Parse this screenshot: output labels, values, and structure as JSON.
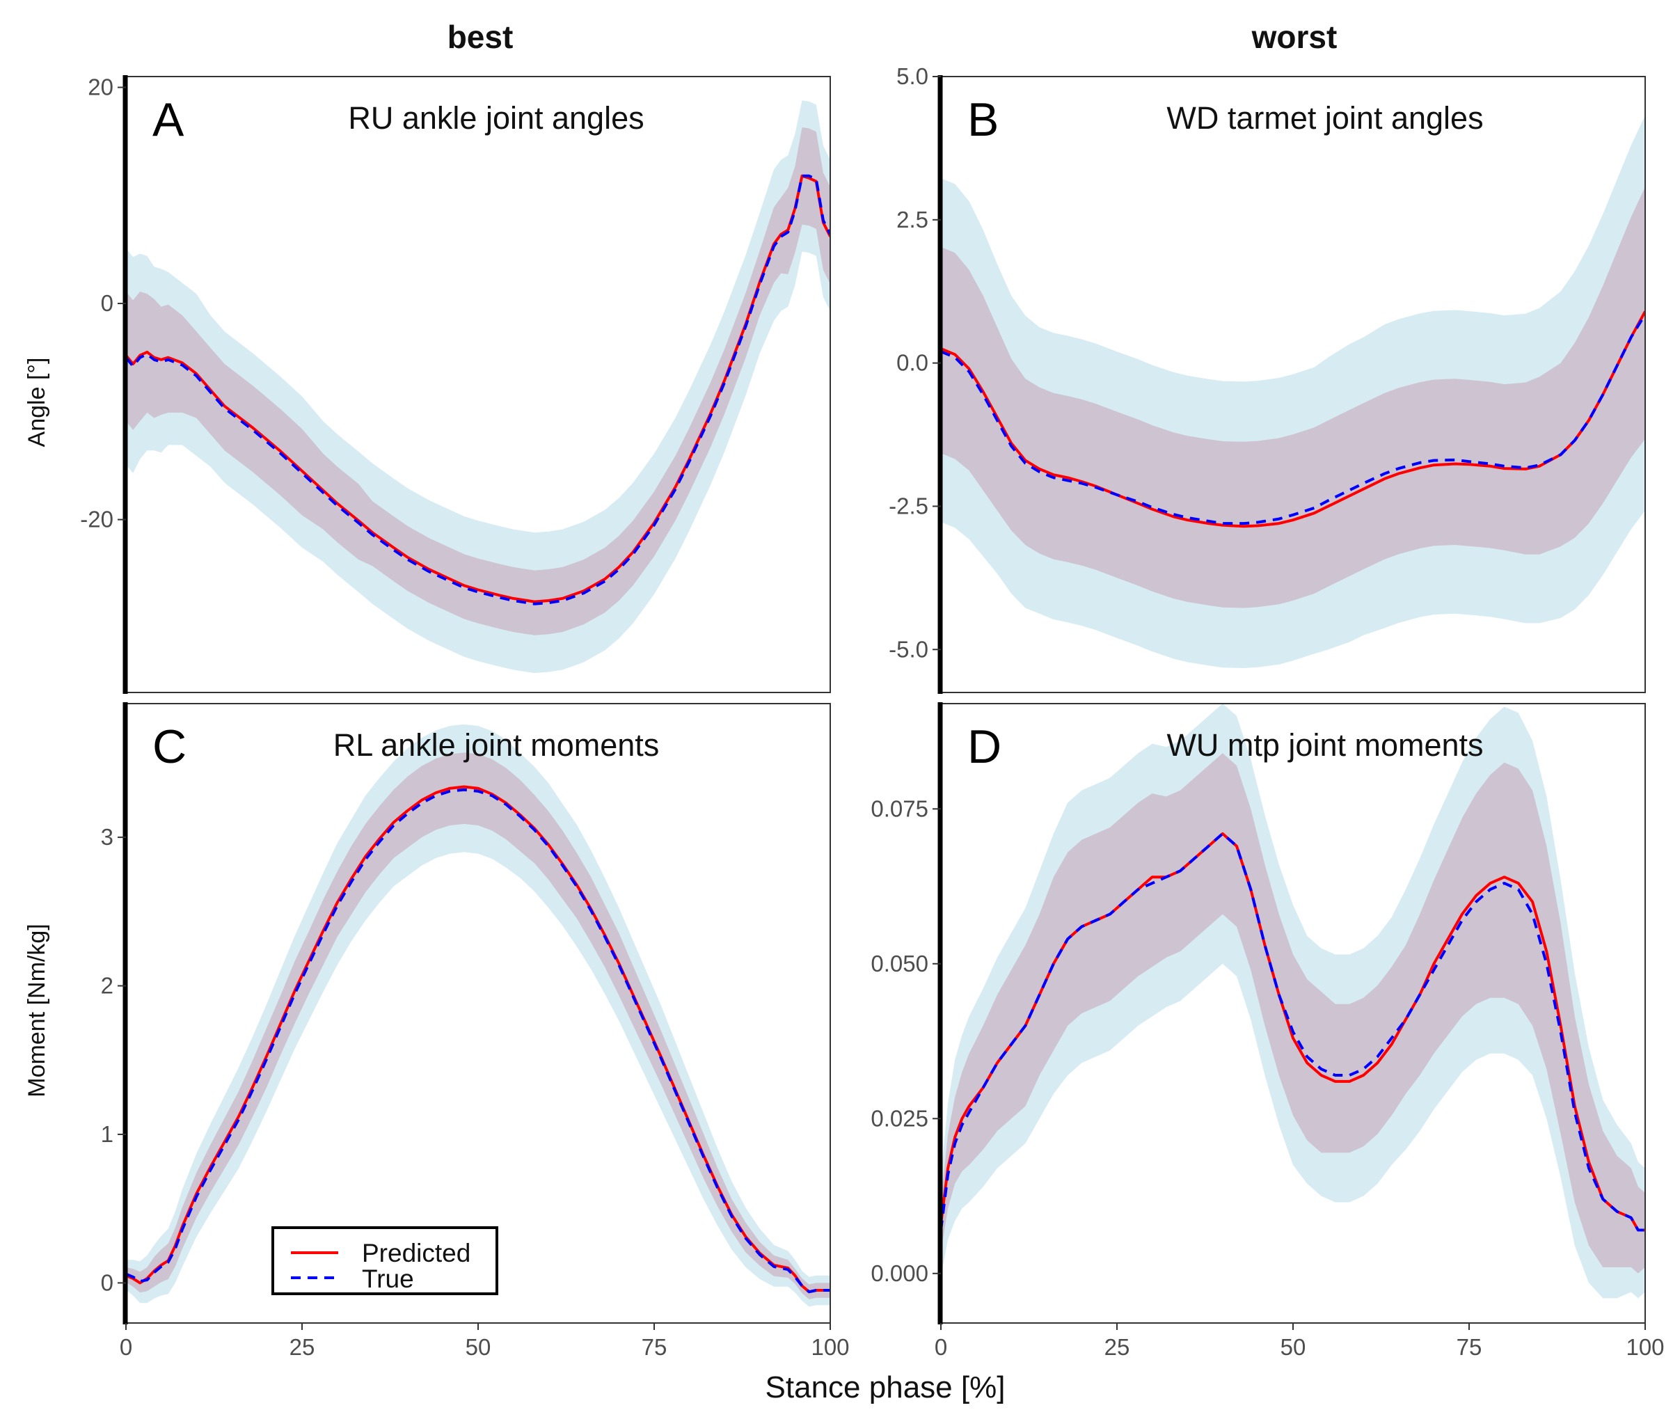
{
  "figure": {
    "columns": [
      "best",
      "worst"
    ],
    "xlabel": "Stance phase [%]",
    "ylabels": {
      "angle": "Angle [°]",
      "moment": "Moment [Nm/kg]"
    },
    "legend": {
      "predicted": "Predicted",
      "true": "True"
    }
  },
  "colors": {
    "predicted": "#ff0000",
    "true": "#0000ff",
    "outer_band": "#add8e6",
    "inner_band": "#c8a2b4"
  },
  "chart_data": [
    {
      "type": "line",
      "letter": "A",
      "title": "RU ankle joint angles",
      "xlim": [
        0,
        100
      ],
      "ylim": [
        -36,
        21
      ],
      "x_ticks": [
        0,
        25,
        50,
        75,
        100
      ],
      "y_ticks": [
        20,
        0,
        -20
      ],
      "y_tick_labels": [
        "20",
        "0",
        "-20"
      ],
      "x": [
        0,
        1,
        2,
        3,
        4,
        5,
        6,
        8,
        10,
        12,
        14,
        16,
        18,
        20,
        22,
        25,
        28,
        30,
        33,
        35,
        38,
        40,
        43,
        45,
        48,
        50,
        53,
        55,
        58,
        60,
        62,
        65,
        68,
        70,
        72,
        75,
        78,
        80,
        83,
        85,
        88,
        90,
        92,
        93,
        94,
        95,
        96,
        97,
        98,
        99,
        100
      ],
      "series": [
        {
          "name": "Predicted",
          "values": [
            -4.8,
            -5.6,
            -4.8,
            -4.5,
            -5.0,
            -5.2,
            -5.0,
            -5.5,
            -6.5,
            -8.0,
            -9.5,
            -10.5,
            -11.5,
            -12.6,
            -13.7,
            -15.5,
            -17.3,
            -18.5,
            -20.1,
            -21.2,
            -22.6,
            -23.5,
            -24.6,
            -25.2,
            -26.1,
            -26.5,
            -27.0,
            -27.3,
            -27.6,
            -27.5,
            -27.3,
            -26.6,
            -25.5,
            -24.4,
            -23.0,
            -20.3,
            -17.0,
            -14.4,
            -10.2,
            -7.1,
            -1.9,
            2.0,
            5.5,
            6.4,
            6.8,
            8.8,
            11.8,
            11.6,
            11.3,
            7.5,
            6.2
          ]
        },
        {
          "name": "True",
          "values": [
            -5.0,
            -5.8,
            -5.0,
            -4.7,
            -5.2,
            -5.4,
            -5.2,
            -5.7,
            -6.7,
            -8.2,
            -9.7,
            -10.7,
            -11.7,
            -12.8,
            -13.9,
            -15.7,
            -17.5,
            -18.7,
            -20.3,
            -21.4,
            -22.8,
            -23.7,
            -24.8,
            -25.4,
            -26.3,
            -26.7,
            -27.2,
            -27.5,
            -27.8,
            -27.7,
            -27.5,
            -26.8,
            -25.7,
            -24.6,
            -23.2,
            -20.5,
            -17.2,
            -14.6,
            -10.4,
            -7.3,
            -2.1,
            1.8,
            5.3,
            6.2,
            6.6,
            8.6,
            11.8,
            11.8,
            11.5,
            7.7,
            6.4
          ]
        }
      ],
      "band_inner_halfwidth": [
        6,
        6,
        6,
        5.5,
        5.5,
        5,
        5,
        4.5,
        4,
        4,
        4,
        4,
        4,
        4,
        4,
        4,
        3.5,
        3.5,
        3.5,
        3,
        3,
        3,
        3,
        3,
        3,
        3,
        3,
        3,
        3,
        3,
        3,
        3,
        3,
        3,
        3,
        3,
        3,
        3,
        3,
        3,
        3,
        3,
        3.5,
        3.5,
        4,
        4,
        4.5,
        4.5,
        4.5,
        4.5,
        4.5
      ],
      "band_outer_halfwidth": [
        10,
        10,
        9.5,
        9,
        8.5,
        8.5,
        8,
        7.5,
        7.5,
        7,
        7,
        7,
        7,
        7,
        7,
        7,
        6.5,
        6.5,
        6.5,
        6.5,
        6.5,
        6.5,
        6.5,
        6.5,
        6.5,
        6.5,
        6.5,
        6.5,
        6.5,
        6.5,
        6.5,
        6.5,
        6.5,
        6.5,
        6.5,
        6.5,
        6.5,
        6.5,
        6.5,
        6.5,
        6.5,
        6.5,
        7,
        7,
        7,
        7,
        7,
        7,
        7,
        7,
        7
      ]
    },
    {
      "type": "line",
      "letter": "B",
      "title": "WD tarmet joint angles",
      "xlim": [
        0,
        100
      ],
      "ylim": [
        -5.75,
        5.0
      ],
      "x_ticks": [
        0,
        25,
        50,
        75,
        100
      ],
      "y_ticks": [
        5.0,
        2.5,
        0.0,
        -2.5,
        -5.0
      ],
      "y_tick_labels": [
        "5.0",
        "2.5",
        "0.0",
        "-2.5",
        "-5.0"
      ],
      "x": [
        0,
        2,
        4,
        6,
        8,
        10,
        12,
        14,
        16,
        18,
        20,
        22,
        25,
        28,
        30,
        33,
        35,
        38,
        40,
        43,
        45,
        48,
        50,
        53,
        55,
        58,
        60,
        63,
        65,
        68,
        70,
        73,
        75,
        78,
        80,
        83,
        85,
        88,
        90,
        92,
        94,
        96,
        98,
        100
      ],
      "series": [
        {
          "name": "Predicted",
          "values": [
            0.25,
            0.15,
            -0.1,
            -0.5,
            -0.95,
            -1.4,
            -1.7,
            -1.85,
            -1.95,
            -2.0,
            -2.07,
            -2.15,
            -2.3,
            -2.45,
            -2.55,
            -2.68,
            -2.74,
            -2.8,
            -2.83,
            -2.85,
            -2.84,
            -2.8,
            -2.74,
            -2.62,
            -2.5,
            -2.32,
            -2.2,
            -2.02,
            -1.93,
            -1.83,
            -1.78,
            -1.76,
            -1.77,
            -1.8,
            -1.84,
            -1.85,
            -1.8,
            -1.6,
            -1.35,
            -1.0,
            -0.55,
            -0.05,
            0.45,
            0.9
          ]
        },
        {
          "name": "True",
          "values": [
            0.2,
            0.1,
            -0.15,
            -0.55,
            -1.0,
            -1.45,
            -1.75,
            -1.9,
            -2.0,
            -2.05,
            -2.1,
            -2.17,
            -2.3,
            -2.42,
            -2.52,
            -2.64,
            -2.7,
            -2.76,
            -2.8,
            -2.8,
            -2.78,
            -2.72,
            -2.65,
            -2.53,
            -2.4,
            -2.22,
            -2.1,
            -1.93,
            -1.84,
            -1.74,
            -1.7,
            -1.69,
            -1.72,
            -1.76,
            -1.8,
            -1.83,
            -1.78,
            -1.6,
            -1.35,
            -1.0,
            -0.55,
            -0.05,
            0.45,
            0.85
          ]
        }
      ],
      "band_inner_halfwidth": [
        1.8,
        1.8,
        1.75,
        1.7,
        1.6,
        1.5,
        1.45,
        1.45,
        1.45,
        1.45,
        1.45,
        1.45,
        1.45,
        1.45,
        1.45,
        1.45,
        1.45,
        1.45,
        1.45,
        1.45,
        1.45,
        1.45,
        1.45,
        1.45,
        1.45,
        1.45,
        1.45,
        1.45,
        1.45,
        1.45,
        1.45,
        1.45,
        1.45,
        1.45,
        1.45,
        1.5,
        1.55,
        1.6,
        1.7,
        1.8,
        1.9,
        2.0,
        2.1,
        2.2
      ],
      "band_outer_halfwidth": [
        3.0,
        3.0,
        2.95,
        2.85,
        2.7,
        2.6,
        2.55,
        2.5,
        2.5,
        2.5,
        2.5,
        2.5,
        2.5,
        2.5,
        2.5,
        2.5,
        2.5,
        2.5,
        2.5,
        2.5,
        2.5,
        2.5,
        2.5,
        2.5,
        2.55,
        2.6,
        2.6,
        2.65,
        2.65,
        2.65,
        2.65,
        2.65,
        2.65,
        2.65,
        2.65,
        2.7,
        2.75,
        2.85,
        2.95,
        3.05,
        3.15,
        3.25,
        3.35,
        3.45
      ]
    },
    {
      "type": "line",
      "letter": "C",
      "title": "RL ankle joint moments",
      "xlim": [
        0,
        100
      ],
      "ylim": [
        -0.27,
        3.9
      ],
      "x_ticks": [
        0,
        25,
        50,
        75,
        100
      ],
      "x_tick_labels": [
        "0",
        "25",
        "50",
        "75",
        "100"
      ],
      "y_ticks": [
        3,
        2,
        1,
        0
      ],
      "y_tick_labels": [
        "3",
        "2",
        "1",
        "0"
      ],
      "x": [
        0,
        1,
        2,
        3,
        4,
        5,
        6,
        7,
        8,
        10,
        12,
        14,
        16,
        18,
        20,
        22,
        24,
        26,
        28,
        30,
        32,
        34,
        36,
        38,
        40,
        42,
        44,
        46,
        48,
        50,
        52,
        54,
        56,
        58,
        60,
        62,
        64,
        66,
        68,
        70,
        72,
        74,
        76,
        78,
        80,
        82,
        84,
        86,
        88,
        90,
        92,
        94,
        95,
        96,
        97,
        98,
        99,
        100
      ],
      "series": [
        {
          "name": "Predicted",
          "values": [
            0.05,
            0.03,
            0.0,
            0.03,
            0.08,
            0.12,
            0.15,
            0.25,
            0.38,
            0.6,
            0.78,
            0.95,
            1.12,
            1.32,
            1.53,
            1.75,
            1.97,
            2.17,
            2.37,
            2.56,
            2.72,
            2.87,
            2.99,
            3.1,
            3.18,
            3.25,
            3.3,
            3.33,
            3.34,
            3.33,
            3.29,
            3.23,
            3.15,
            3.06,
            2.95,
            2.82,
            2.68,
            2.52,
            2.34,
            2.15,
            1.94,
            1.73,
            1.52,
            1.3,
            1.08,
            0.86,
            0.65,
            0.46,
            0.31,
            0.2,
            0.12,
            0.1,
            0.05,
            -0.02,
            -0.06,
            -0.05,
            -0.05,
            -0.05
          ]
        },
        {
          "name": "True",
          "values": [
            0.06,
            0.04,
            0.01,
            0.02,
            0.07,
            0.11,
            0.14,
            0.23,
            0.36,
            0.58,
            0.76,
            0.93,
            1.1,
            1.3,
            1.51,
            1.73,
            1.95,
            2.15,
            2.35,
            2.54,
            2.7,
            2.85,
            2.97,
            3.08,
            3.16,
            3.23,
            3.28,
            3.31,
            3.32,
            3.31,
            3.28,
            3.22,
            3.14,
            3.05,
            2.94,
            2.81,
            2.67,
            2.51,
            2.33,
            2.14,
            1.93,
            1.72,
            1.51,
            1.29,
            1.07,
            0.85,
            0.64,
            0.45,
            0.3,
            0.19,
            0.11,
            0.09,
            0.04,
            -0.02,
            -0.06,
            -0.05,
            -0.05,
            -0.05
          ]
        }
      ],
      "band_inner_halfwidth": [
        0.05,
        0.06,
        0.07,
        0.08,
        0.1,
        0.11,
        0.12,
        0.13,
        0.14,
        0.15,
        0.16,
        0.17,
        0.18,
        0.19,
        0.2,
        0.2,
        0.21,
        0.21,
        0.22,
        0.22,
        0.23,
        0.23,
        0.23,
        0.23,
        0.24,
        0.24,
        0.24,
        0.24,
        0.24,
        0.24,
        0.24,
        0.24,
        0.24,
        0.23,
        0.23,
        0.23,
        0.22,
        0.22,
        0.21,
        0.21,
        0.2,
        0.19,
        0.18,
        0.17,
        0.16,
        0.15,
        0.13,
        0.11,
        0.1,
        0.08,
        0.07,
        0.06,
        0.05,
        0.05,
        0.05,
        0.05,
        0.05,
        0.05
      ],
      "band_outer_halfwidth": [
        0.1,
        0.12,
        0.14,
        0.16,
        0.18,
        0.2,
        0.22,
        0.24,
        0.26,
        0.28,
        0.3,
        0.32,
        0.34,
        0.35,
        0.36,
        0.37,
        0.38,
        0.39,
        0.4,
        0.41,
        0.41,
        0.42,
        0.42,
        0.42,
        0.43,
        0.43,
        0.43,
        0.43,
        0.43,
        0.43,
        0.43,
        0.43,
        0.42,
        0.42,
        0.42,
        0.41,
        0.41,
        0.4,
        0.39,
        0.38,
        0.37,
        0.36,
        0.35,
        0.33,
        0.31,
        0.29,
        0.26,
        0.23,
        0.2,
        0.17,
        0.14,
        0.12,
        0.11,
        0.1,
        0.1,
        0.1,
        0.1,
        0.1
      ]
    },
    {
      "type": "line",
      "letter": "D",
      "title": "WU mtp joint moments",
      "xlim": [
        0,
        100
      ],
      "ylim": [
        -0.008,
        0.092
      ],
      "x_ticks": [
        0,
        25,
        50,
        75,
        100
      ],
      "x_tick_labels": [
        "0",
        "25",
        "50",
        "75",
        "100"
      ],
      "y_ticks": [
        0.075,
        0.05,
        0.025,
        0.0
      ],
      "y_tick_labels": [
        "0.075",
        "0.050",
        "0.025",
        "0.000"
      ],
      "x": [
        0,
        1,
        2,
        3,
        4,
        6,
        8,
        10,
        12,
        14,
        16,
        18,
        20,
        22,
        24,
        26,
        28,
        30,
        32,
        34,
        36,
        38,
        40,
        42,
        44,
        46,
        48,
        50,
        52,
        54,
        56,
        58,
        60,
        62,
        64,
        66,
        68,
        70,
        72,
        74,
        76,
        78,
        80,
        82,
        84,
        86,
        88,
        90,
        92,
        94,
        96,
        98,
        99,
        100
      ],
      "series": [
        {
          "name": "Predicted",
          "values": [
            0.008,
            0.017,
            0.022,
            0.025,
            0.027,
            0.03,
            0.034,
            0.037,
            0.04,
            0.045,
            0.05,
            0.054,
            0.056,
            0.057,
            0.058,
            0.06,
            0.062,
            0.064,
            0.064,
            0.065,
            0.067,
            0.069,
            0.071,
            0.069,
            0.062,
            0.053,
            0.045,
            0.038,
            0.034,
            0.032,
            0.031,
            0.031,
            0.032,
            0.034,
            0.037,
            0.041,
            0.045,
            0.05,
            0.054,
            0.058,
            0.061,
            0.063,
            0.064,
            0.063,
            0.06,
            0.052,
            0.04,
            0.027,
            0.018,
            0.012,
            0.01,
            0.009,
            0.007,
            0.007
          ]
        },
        {
          "name": "True",
          "values": [
            0.007,
            0.016,
            0.021,
            0.024,
            0.026,
            0.03,
            0.034,
            0.037,
            0.04,
            0.045,
            0.05,
            0.054,
            0.056,
            0.057,
            0.058,
            0.06,
            0.062,
            0.063,
            0.064,
            0.065,
            0.067,
            0.069,
            0.071,
            0.069,
            0.062,
            0.053,
            0.045,
            0.039,
            0.035,
            0.033,
            0.032,
            0.032,
            0.033,
            0.035,
            0.038,
            0.041,
            0.045,
            0.049,
            0.053,
            0.057,
            0.06,
            0.062,
            0.063,
            0.062,
            0.058,
            0.05,
            0.039,
            0.026,
            0.017,
            0.012,
            0.01,
            0.009,
            0.007,
            0.007
          ]
        }
      ],
      "band_inner_halfwidth": [
        0.004,
        0.006,
        0.007,
        0.008,
        0.009,
        0.01,
        0.011,
        0.012,
        0.013,
        0.013,
        0.014,
        0.014,
        0.014,
        0.014,
        0.014,
        0.014,
        0.014,
        0.014,
        0.013,
        0.013,
        0.013,
        0.013,
        0.013,
        0.013,
        0.013,
        0.013,
        0.013,
        0.013,
        0.013,
        0.013,
        0.012,
        0.012,
        0.012,
        0.012,
        0.012,
        0.012,
        0.013,
        0.014,
        0.015,
        0.016,
        0.017,
        0.018,
        0.019,
        0.019,
        0.019,
        0.018,
        0.017,
        0.015,
        0.013,
        0.011,
        0.009,
        0.008,
        0.007,
        0.006
      ],
      "band_outer_halfwidth": [
        0.008,
        0.011,
        0.013,
        0.014,
        0.015,
        0.016,
        0.017,
        0.018,
        0.019,
        0.02,
        0.021,
        0.022,
        0.022,
        0.022,
        0.022,
        0.022,
        0.022,
        0.022,
        0.021,
        0.021,
        0.021,
        0.021,
        0.021,
        0.021,
        0.021,
        0.021,
        0.021,
        0.021,
        0.02,
        0.02,
        0.02,
        0.02,
        0.02,
        0.02,
        0.02,
        0.021,
        0.022,
        0.023,
        0.024,
        0.025,
        0.026,
        0.027,
        0.028,
        0.028,
        0.027,
        0.026,
        0.024,
        0.022,
        0.019,
        0.016,
        0.014,
        0.012,
        0.011,
        0.01
      ]
    }
  ]
}
